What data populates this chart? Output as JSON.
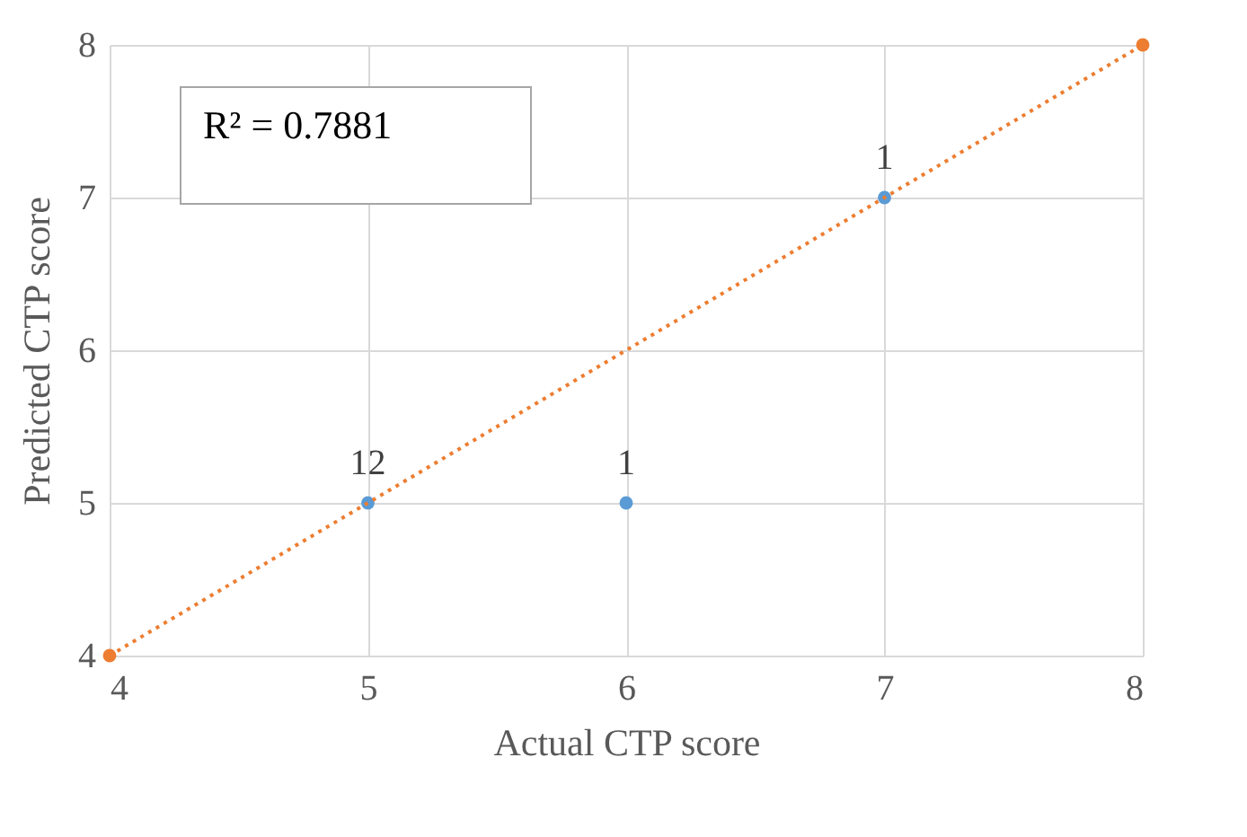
{
  "chart_data": {
    "type": "scatter",
    "xlabel": "Actual CTP score",
    "ylabel": "Predicted CTP score",
    "xlim": [
      4,
      8
    ],
    "ylim": [
      4,
      8
    ],
    "xticks": [
      4,
      5,
      6,
      7,
      8
    ],
    "yticks": [
      4,
      5,
      6,
      7,
      8
    ],
    "grid": true,
    "marker": "circle",
    "annotations": [
      "R² = 0.7881",
      {
        "text": "12",
        "x": 5,
        "y": 5
      },
      {
        "text": "1",
        "x": 6,
        "y": 5
      },
      {
        "text": "1",
        "x": 7,
        "y": 7
      }
    ],
    "series": [
      {
        "color": "#5b9bd5",
        "x": [
          5,
          6,
          7
        ],
        "values": [
          5,
          5,
          7
        ]
      },
      {
        "type": "line",
        "color": "#ed7d31",
        "x": [
          4,
          8
        ],
        "values": [
          4,
          8
        ],
        "line_style": "dotted"
      }
    ]
  }
}
